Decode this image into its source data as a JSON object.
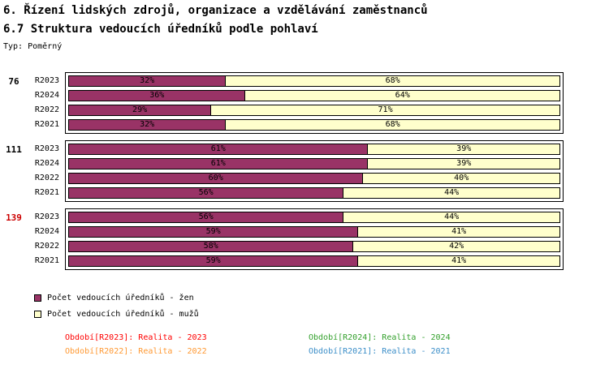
{
  "header": {
    "title1": "6. Řízení lidských zdrojů, organizace a vzdělávání zaměstnanců",
    "title2": "6.7 Struktura vedoucích úředníků podle pohlaví",
    "type_label": "Typ: Poměrný"
  },
  "chart_data": {
    "type": "bar",
    "orientation": "horizontal",
    "stacked": true,
    "value_unit": "%",
    "value_range": [
      0,
      100
    ],
    "title": "6.7 Struktura vedoucích úředníků podle pohlaví",
    "legend_position": "bottom-left",
    "series": [
      {
        "name": "Počet vedoucích úředníků - žen",
        "color": "#993366"
      },
      {
        "name": "Počet vedoucích úředníků - mužů",
        "color": "#FFFFCC"
      }
    ],
    "groups": [
      {
        "label": "76",
        "label_color": "#000000",
        "rows": [
          {
            "period": "R2023",
            "values": [
              32,
              68
            ]
          },
          {
            "period": "R2024",
            "values": [
              36,
              64
            ]
          },
          {
            "period": "R2022",
            "values": [
              29,
              71
            ]
          },
          {
            "period": "R2021",
            "values": [
              32,
              68
            ]
          }
        ]
      },
      {
        "label": "111",
        "label_color": "#000000",
        "rows": [
          {
            "period": "R2023",
            "values": [
              61,
              39
            ]
          },
          {
            "period": "R2024",
            "values": [
              61,
              39
            ]
          },
          {
            "period": "R2022",
            "values": [
              60,
              40
            ]
          },
          {
            "period": "R2021",
            "values": [
              56,
              44
            ]
          }
        ]
      },
      {
        "label": "139",
        "label_color": "#CC0000",
        "rows": [
          {
            "period": "R2023",
            "values": [
              56,
              44
            ]
          },
          {
            "period": "R2024",
            "values": [
              59,
              41
            ]
          },
          {
            "period": "R2022",
            "values": [
              58,
              42
            ]
          },
          {
            "period": "R2021",
            "values": [
              59,
              41
            ]
          }
        ]
      }
    ]
  },
  "footnotes": [
    {
      "text": "Období[R2023]: Realita - 2023",
      "color": "#FF0000"
    },
    {
      "text": "Období[R2024]: Realita - 2024",
      "color": "#33A02C"
    },
    {
      "text": "Období[R2022]: Realita - 2022",
      "color": "#FF9933"
    },
    {
      "text": "Období[R2021]: Realita - 2021",
      "color": "#3B8EC8"
    }
  ]
}
